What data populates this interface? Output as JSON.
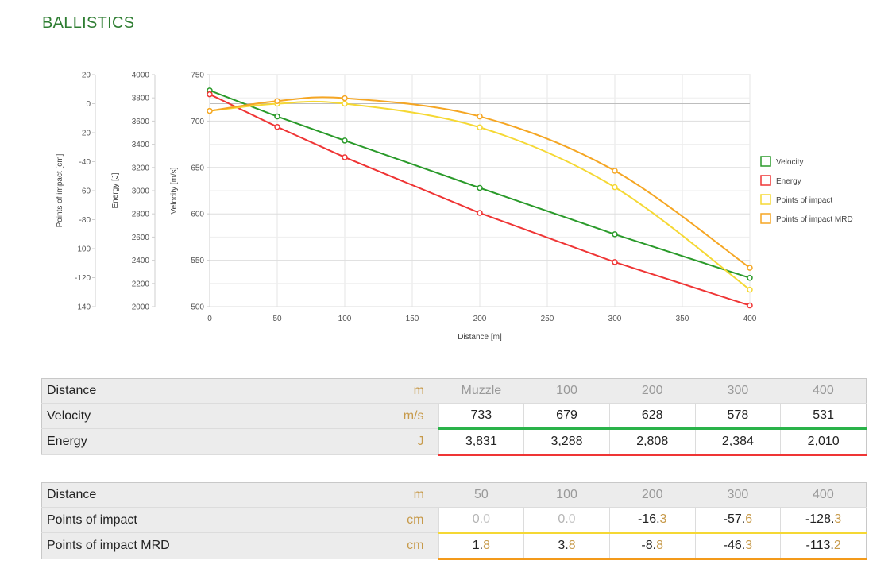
{
  "page": {
    "title": "BALLISTICS"
  },
  "chart_data": {
    "type": "line",
    "xlabel": "Distance [m]",
    "xlim": [
      0,
      400
    ],
    "xticks": [
      0,
      50,
      100,
      150,
      200,
      250,
      300,
      350,
      400
    ],
    "grid": true,
    "legend_position": "right",
    "axes": {
      "velocity": {
        "label": "Velocity [m/s]",
        "range": [
          500,
          750
        ],
        "ticks": [
          500,
          550,
          600,
          650,
          700,
          750
        ]
      },
      "energy": {
        "label": "Energy [J]",
        "range": [
          2000,
          4000
        ],
        "ticks": [
          2000,
          2200,
          2400,
          2600,
          2800,
          3000,
          3200,
          3400,
          3600,
          3800,
          4000
        ]
      },
      "impact": {
        "label": "Points of impact [cm]",
        "range": [
          -140,
          20
        ],
        "ticks": [
          -140,
          -120,
          -100,
          -80,
          -60,
          -40,
          -20,
          0,
          20
        ]
      }
    },
    "series": [
      {
        "name": "Velocity",
        "axis": "velocity",
        "color": "#2a9a2a",
        "x": [
          0,
          50,
          100,
          200,
          300,
          400
        ],
        "y": [
          733,
          705,
          679,
          628,
          578,
          531
        ]
      },
      {
        "name": "Energy",
        "axis": "energy",
        "color": "#ef3535",
        "x": [
          0,
          50,
          100,
          200,
          300,
          400
        ],
        "y": [
          3831,
          3550,
          3288,
          2808,
          2384,
          2010
        ]
      },
      {
        "name": "Points of impact",
        "axis": "impact",
        "color": "#f5d834",
        "x": [
          0,
          50,
          100,
          200,
          300,
          400
        ],
        "y": [
          -5,
          0.0,
          0.0,
          -16.3,
          -57.6,
          -128.3
        ]
      },
      {
        "name": "Points of impact MRD",
        "axis": "impact",
        "color": "#f5a623",
        "x": [
          0,
          50,
          100,
          200,
          300,
          400
        ],
        "y": [
          -5,
          1.8,
          3.8,
          -8.8,
          -46.3,
          -113.2
        ]
      }
    ]
  },
  "table_ballistics": {
    "rows": [
      {
        "label": "Distance",
        "unit": "m",
        "cells": [
          "Muzzle",
          "100",
          "200",
          "300",
          "400"
        ]
      },
      {
        "label": "Velocity",
        "unit": "m/s",
        "cells": [
          "733",
          "679",
          "628",
          "578",
          "531"
        ]
      },
      {
        "label": "Energy",
        "unit": "J",
        "cells": [
          "3,831",
          "3,288",
          "2,808",
          "2,384",
          "2,010"
        ]
      }
    ]
  },
  "table_impact": {
    "rows": [
      {
        "label": "Distance",
        "unit": "m",
        "cells": [
          "50",
          "100",
          "200",
          "300",
          "400"
        ]
      },
      {
        "label": "Points of impact",
        "unit": "cm",
        "cells": [
          {
            "int": "0.",
            "dec": "0"
          },
          {
            "int": "0.",
            "dec": "0"
          },
          {
            "int": "-16.",
            "dec": "3"
          },
          {
            "int": "-57.",
            "dec": "6"
          },
          {
            "int": "-128.",
            "dec": "3"
          }
        ]
      },
      {
        "label": "Points of impact MRD",
        "unit": "cm",
        "cells": [
          {
            "int": "1.",
            "dec": "8"
          },
          {
            "int": "3.",
            "dec": "8"
          },
          {
            "int": "-8.",
            "dec": "8"
          },
          {
            "int": "-46.",
            "dec": "3"
          },
          {
            "int": "-113.",
            "dec": "2"
          }
        ]
      }
    ]
  }
}
